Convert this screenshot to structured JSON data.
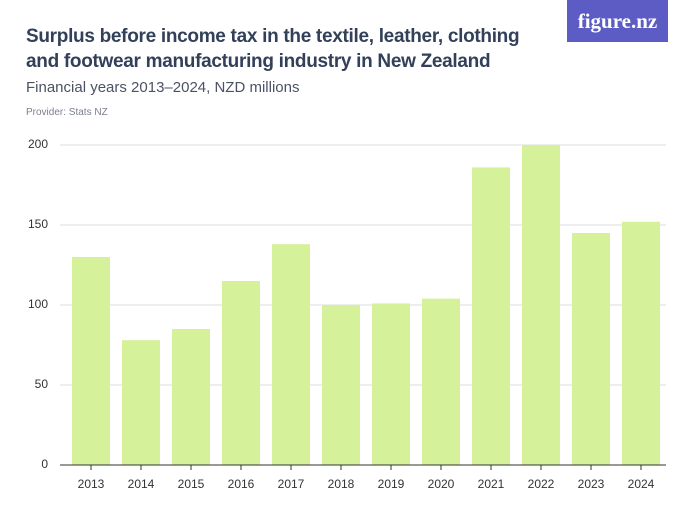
{
  "brand": "figure.nz",
  "chart_data": {
    "type": "bar",
    "title": "Surplus before income tax in the textile, leather, clothing and footwear manufacturing industry in New Zealand",
    "subtitle": "Financial years 2013–2024, NZD millions",
    "provider": "Provider: Stats NZ",
    "categories": [
      "2013",
      "2014",
      "2015",
      "2016",
      "2017",
      "2018",
      "2019",
      "2020",
      "2021",
      "2022",
      "2023",
      "2024"
    ],
    "values": [
      130,
      78,
      85,
      115,
      138,
      100,
      101,
      104,
      186,
      200,
      145,
      152
    ],
    "color": "#d5f29b",
    "ylim": [
      0,
      200
    ],
    "yticks": [
      0,
      50,
      100,
      150,
      200
    ],
    "grid": true
  }
}
